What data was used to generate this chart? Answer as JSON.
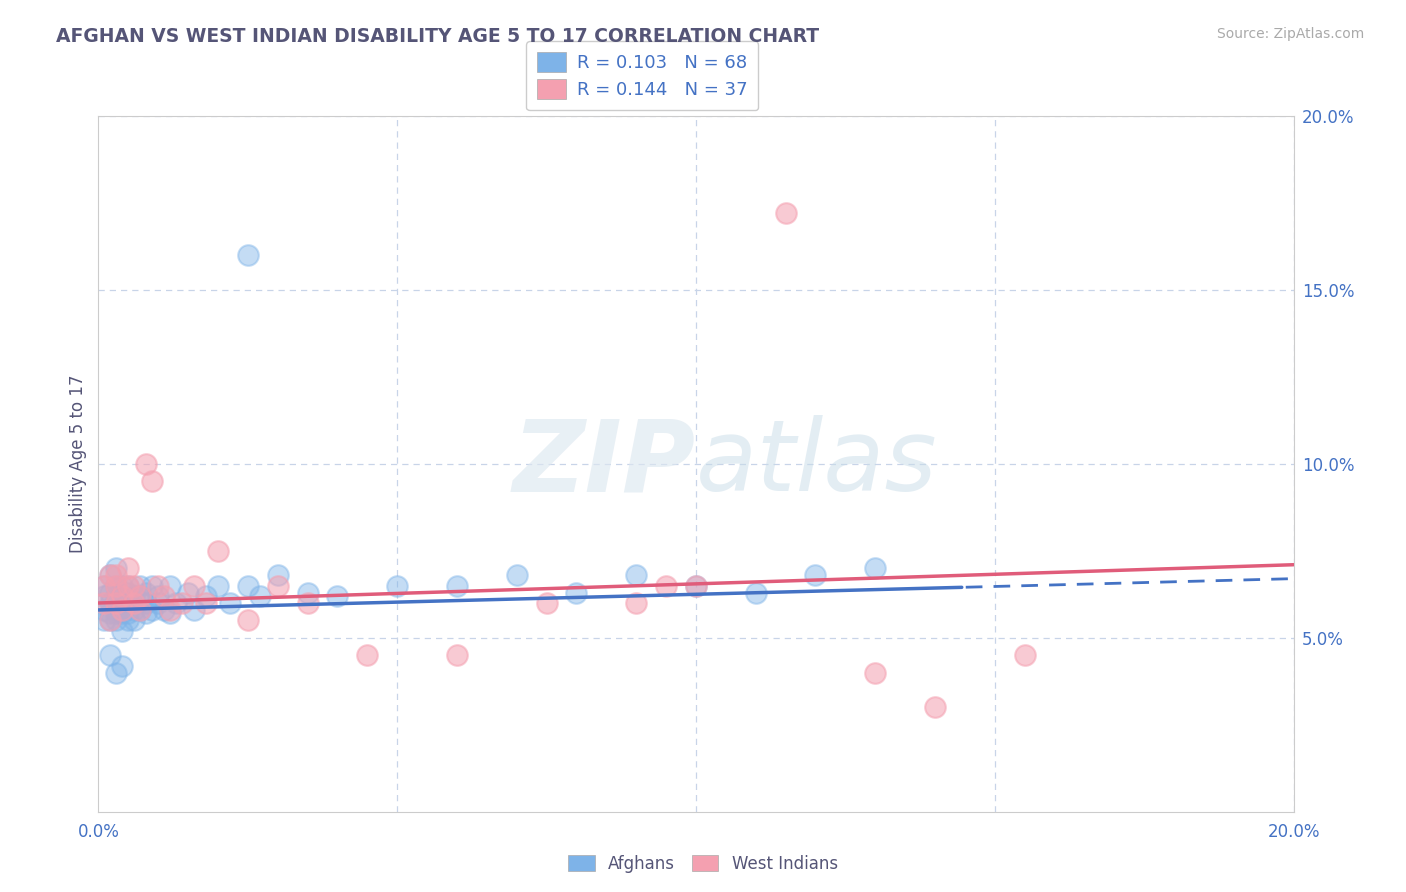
{
  "title": "AFGHAN VS WEST INDIAN DISABILITY AGE 5 TO 17 CORRELATION CHART",
  "source": "Source: ZipAtlas.com",
  "ylabel": "Disability Age 5 to 17",
  "xlim": [
    0.0,
    0.2
  ],
  "ylim": [
    0.0,
    0.2
  ],
  "R_afghan": 0.103,
  "N_afghan": 68,
  "R_westindian": 0.144,
  "N_westindian": 37,
  "afghan_color": "#7eb3e8",
  "westindian_color": "#f4a0b0",
  "afghan_line_color": "#4472C4",
  "westindian_line_color": "#E05C7A",
  "background_color": "#ffffff",
  "grid_color": "#c8d4e8",
  "title_color": "#555577",
  "source_color": "#aaaaaa",
  "legend_color": "#4472C4",
  "watermark_zip": "ZIP",
  "watermark_atlas": "atlas",
  "afghan_line_intercept": 0.058,
  "afghan_line_slope": 0.045,
  "westindian_line_intercept": 0.06,
  "westindian_line_slope": 0.055,
  "afghan_line_solid_end": 0.145,
  "afghan_x": [
    0.001,
    0.001,
    0.001,
    0.001,
    0.002,
    0.002,
    0.002,
    0.002,
    0.002,
    0.003,
    0.003,
    0.003,
    0.003,
    0.003,
    0.003,
    0.003,
    0.004,
    0.004,
    0.004,
    0.004,
    0.004,
    0.004,
    0.005,
    0.005,
    0.005,
    0.005,
    0.005,
    0.006,
    0.006,
    0.006,
    0.006,
    0.007,
    0.007,
    0.007,
    0.008,
    0.008,
    0.008,
    0.009,
    0.009,
    0.01,
    0.01,
    0.011,
    0.012,
    0.012,
    0.013,
    0.015,
    0.016,
    0.018,
    0.02,
    0.022,
    0.025,
    0.027,
    0.03,
    0.035,
    0.04,
    0.05,
    0.06,
    0.07,
    0.08,
    0.09,
    0.1,
    0.11,
    0.12,
    0.13,
    0.025,
    0.003,
    0.002,
    0.004
  ],
  "afghan_y": [
    0.058,
    0.062,
    0.055,
    0.065,
    0.06,
    0.057,
    0.063,
    0.055,
    0.068,
    0.058,
    0.06,
    0.065,
    0.062,
    0.057,
    0.055,
    0.07,
    0.06,
    0.058,
    0.065,
    0.062,
    0.057,
    0.052,
    0.06,
    0.063,
    0.057,
    0.055,
    0.065,
    0.058,
    0.062,
    0.055,
    0.06,
    0.065,
    0.058,
    0.062,
    0.06,
    0.057,
    0.063,
    0.058,
    0.065,
    0.06,
    0.062,
    0.058,
    0.065,
    0.057,
    0.06,
    0.063,
    0.058,
    0.062,
    0.065,
    0.06,
    0.065,
    0.062,
    0.068,
    0.063,
    0.062,
    0.065,
    0.065,
    0.068,
    0.063,
    0.068,
    0.065,
    0.063,
    0.068,
    0.07,
    0.16,
    0.04,
    0.045,
    0.042
  ],
  "westindian_x": [
    0.001,
    0.001,
    0.002,
    0.002,
    0.003,
    0.003,
    0.003,
    0.004,
    0.004,
    0.005,
    0.005,
    0.006,
    0.006,
    0.007,
    0.007,
    0.008,
    0.009,
    0.01,
    0.011,
    0.012,
    0.014,
    0.016,
    0.018,
    0.02,
    0.025,
    0.03,
    0.035,
    0.045,
    0.06,
    0.075,
    0.09,
    0.095,
    0.1,
    0.13,
    0.14,
    0.155,
    0.115
  ],
  "westindian_y": [
    0.065,
    0.06,
    0.068,
    0.055,
    0.065,
    0.06,
    0.068,
    0.058,
    0.062,
    0.07,
    0.065,
    0.06,
    0.065,
    0.058,
    0.062,
    0.1,
    0.095,
    0.065,
    0.062,
    0.058,
    0.06,
    0.065,
    0.06,
    0.075,
    0.055,
    0.065,
    0.06,
    0.045,
    0.045,
    0.06,
    0.06,
    0.065,
    0.065,
    0.04,
    0.03,
    0.045,
    0.172
  ]
}
